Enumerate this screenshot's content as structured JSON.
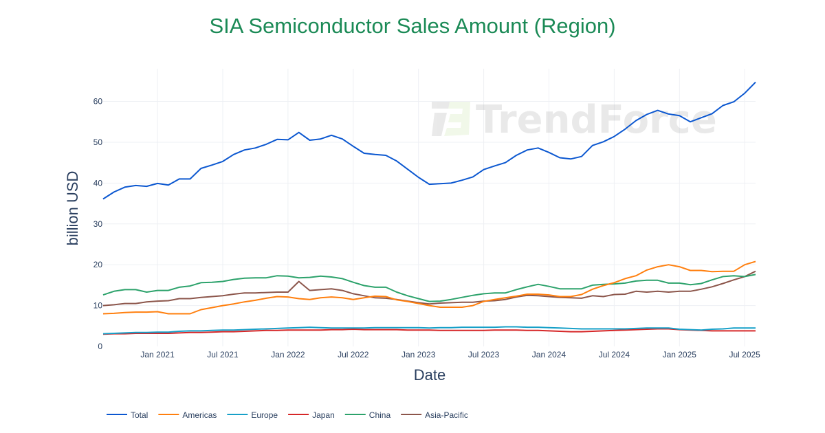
{
  "chart_data": {
    "type": "line",
    "title": "SIA Semiconductor Sales Amount (Region)",
    "xlabel": "Date",
    "ylabel": "billion USD",
    "x_start": "2020-08",
    "x_end": "2025-08",
    "x_frequency": "monthly",
    "x_ticks": [
      "Jan 2021",
      "Jul 2021",
      "Jan 2022",
      "Jul 2022",
      "Jan 2023",
      "Jul 2023",
      "Jan 2024",
      "Jul 2024",
      "Jan 2025",
      "Jul 2025"
    ],
    "y_ticks": [
      0,
      10,
      20,
      30,
      40,
      50,
      60
    ],
    "ylim": [
      0,
      68
    ],
    "grid": true,
    "legend_position": "bottom",
    "watermark": "TrendForce",
    "series": [
      {
        "name": "Total",
        "color": "#0b57d0",
        "values": [
          36.1,
          37.8,
          39.0,
          39.4,
          39.2,
          39.9,
          39.5,
          41.0,
          41.0,
          43.6,
          44.4,
          45.3,
          47.0,
          48.1,
          48.6,
          49.5,
          50.7,
          50.6,
          52.4,
          50.5,
          50.8,
          51.7,
          50.8,
          49.0,
          47.3,
          47.0,
          46.8,
          45.4,
          43.4,
          41.4,
          39.7,
          39.85,
          40.0,
          40.7,
          41.5,
          43.3,
          44.2,
          45.0,
          46.8,
          48.1,
          48.6,
          47.5,
          46.2,
          45.9,
          46.5,
          49.2,
          50.1,
          51.4,
          53.2,
          55.3,
          56.8,
          57.8,
          56.9,
          56.5,
          55.0,
          56.0,
          57.0,
          59.0,
          59.9,
          62.0,
          64.7
        ]
      },
      {
        "name": "Americas",
        "color": "#ff7f0e",
        "values": [
          8.0,
          8.1,
          8.3,
          8.4,
          8.4,
          8.5,
          8.0,
          8.0,
          8.0,
          9.0,
          9.5,
          10.0,
          10.4,
          10.9,
          11.3,
          11.8,
          12.2,
          12.1,
          11.7,
          11.5,
          11.9,
          12.1,
          11.9,
          11.5,
          11.9,
          12.3,
          12.2,
          11.4,
          11.0,
          10.5,
          10.0,
          9.6,
          9.6,
          9.6,
          10.0,
          11.0,
          11.5,
          11.9,
          12.3,
          12.8,
          12.8,
          12.6,
          12.2,
          12.2,
          12.7,
          14.0,
          14.9,
          15.6,
          16.6,
          17.3,
          18.7,
          19.5,
          20.0,
          19.5,
          18.6,
          18.6,
          18.3,
          18.4,
          18.4,
          20.0,
          20.8
        ]
      },
      {
        "name": "Europe",
        "color": "#17a0c8",
        "values": [
          3.1,
          3.2,
          3.3,
          3.4,
          3.4,
          3.5,
          3.5,
          3.7,
          3.8,
          3.8,
          3.9,
          4.0,
          4.0,
          4.1,
          4.2,
          4.3,
          4.4,
          4.5,
          4.6,
          4.7,
          4.6,
          4.5,
          4.5,
          4.5,
          4.5,
          4.6,
          4.6,
          4.6,
          4.6,
          4.6,
          4.5,
          4.6,
          4.6,
          4.7,
          4.7,
          4.7,
          4.7,
          4.8,
          4.8,
          4.7,
          4.7,
          4.6,
          4.5,
          4.4,
          4.3,
          4.3,
          4.3,
          4.3,
          4.3,
          4.4,
          4.5,
          4.5,
          4.5,
          4.2,
          4.1,
          4.0,
          4.2,
          4.3,
          4.5,
          4.5,
          4.5
        ]
      },
      {
        "name": "Japan",
        "color": "#d62728",
        "values": [
          3.0,
          3.1,
          3.1,
          3.2,
          3.2,
          3.2,
          3.2,
          3.3,
          3.4,
          3.4,
          3.5,
          3.6,
          3.6,
          3.7,
          3.8,
          3.9,
          3.9,
          4.0,
          4.0,
          4.0,
          4.0,
          4.1,
          4.1,
          4.2,
          4.1,
          4.1,
          4.1,
          4.1,
          4.0,
          4.0,
          4.0,
          3.9,
          3.9,
          3.9,
          3.9,
          3.9,
          4.0,
          4.0,
          4.0,
          3.9,
          3.9,
          3.8,
          3.7,
          3.6,
          3.6,
          3.7,
          3.8,
          3.9,
          4.0,
          4.1,
          4.2,
          4.3,
          4.3,
          4.1,
          4.0,
          3.9,
          3.8,
          3.8,
          3.8,
          3.8,
          3.8
        ]
      },
      {
        "name": "China",
        "color": "#2ca26b",
        "values": [
          12.6,
          13.5,
          13.9,
          13.9,
          13.3,
          13.7,
          13.7,
          14.5,
          14.8,
          15.6,
          15.7,
          15.9,
          16.4,
          16.7,
          16.8,
          16.8,
          17.3,
          17.2,
          16.8,
          16.9,
          17.2,
          17.0,
          16.6,
          15.7,
          14.9,
          14.5,
          14.5,
          13.3,
          12.4,
          11.7,
          11.0,
          11.1,
          11.5,
          12.0,
          12.5,
          12.9,
          13.1,
          13.1,
          13.9,
          14.6,
          15.2,
          14.7,
          14.1,
          14.1,
          14.1,
          15.0,
          15.2,
          15.3,
          15.5,
          16.0,
          16.2,
          16.2,
          15.5,
          15.5,
          15.1,
          15.4,
          16.3,
          17.1,
          17.3,
          17.1,
          17.6
        ]
      },
      {
        "name": "Asia-Pacific",
        "color": "#8c564b",
        "values": [
          10.0,
          10.2,
          10.5,
          10.5,
          10.9,
          11.1,
          11.2,
          11.7,
          11.7,
          12.0,
          12.2,
          12.4,
          12.8,
          13.1,
          13.1,
          13.2,
          13.3,
          13.3,
          15.9,
          13.7,
          13.9,
          14.1,
          13.7,
          12.9,
          12.4,
          11.9,
          11.8,
          11.5,
          11.1,
          10.7,
          10.4,
          10.6,
          10.7,
          10.8,
          10.8,
          11.1,
          11.2,
          11.5,
          12.1,
          12.5,
          12.4,
          12.2,
          12.0,
          11.9,
          11.8,
          12.4,
          12.2,
          12.7,
          12.8,
          13.5,
          13.3,
          13.5,
          13.3,
          13.5,
          13.5,
          14.0,
          14.6,
          15.4,
          16.3,
          17.1,
          18.4
        ]
      }
    ]
  }
}
